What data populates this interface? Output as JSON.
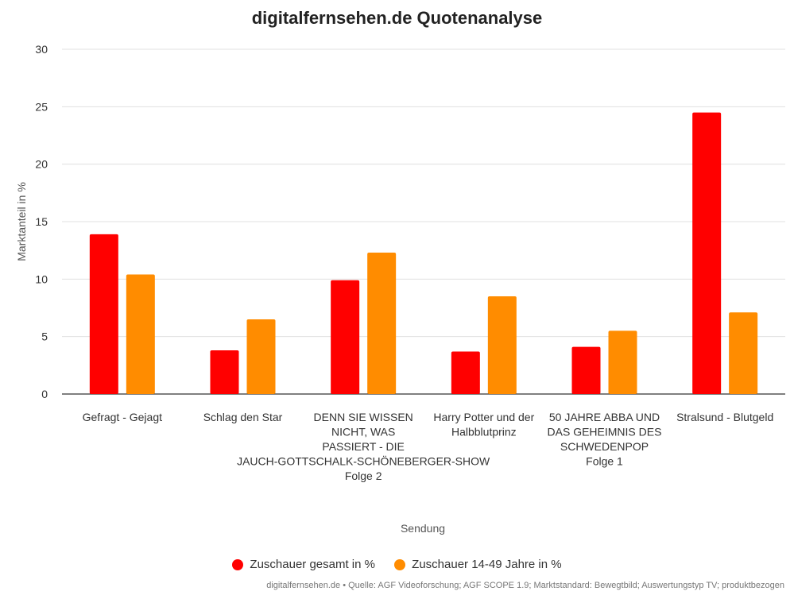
{
  "chart_data": {
    "type": "bar",
    "title": "digitalfernsehen.de Quotenanalyse",
    "xlabel": "Sendung",
    "ylabel": "Marktanteil in %",
    "ylim": [
      0,
      30
    ],
    "yticks": [
      0,
      5,
      10,
      15,
      20,
      25,
      30
    ],
    "grid": true,
    "legend_position": "bottom",
    "categories": [
      "Gefragt - Gejagt",
      "Schlag den Star",
      "DENN SIE WISSEN NICHT, WAS PASSIERT - DIE JAUCH-GOTTSCHALK-SCHÖNEBERGER-SHOW Folge 2",
      "Harry Potter und der Halbblutprinz",
      "50 JAHRE ABBA UND DAS GEHEIMNIS DES SCHWEDENPOP Folge 1",
      "Stralsund - Blutgeld"
    ],
    "series": [
      {
        "name": "Zuschauer gesamt in %",
        "color": "#ff0000",
        "values": [
          13.9,
          3.8,
          9.9,
          3.7,
          4.1,
          24.5
        ]
      },
      {
        "name": "Zuschauer 14-49 Jahre in %",
        "color": "#ff8c00",
        "values": [
          10.4,
          6.5,
          12.3,
          8.5,
          5.5,
          7.1
        ]
      }
    ]
  },
  "source": "digitalfernsehen.de • Quelle: AGF Videoforschung; AGF SCOPE 1.9; Marktstandard: Bewegtbild; Auswertungstyp TV; produktbezogen"
}
